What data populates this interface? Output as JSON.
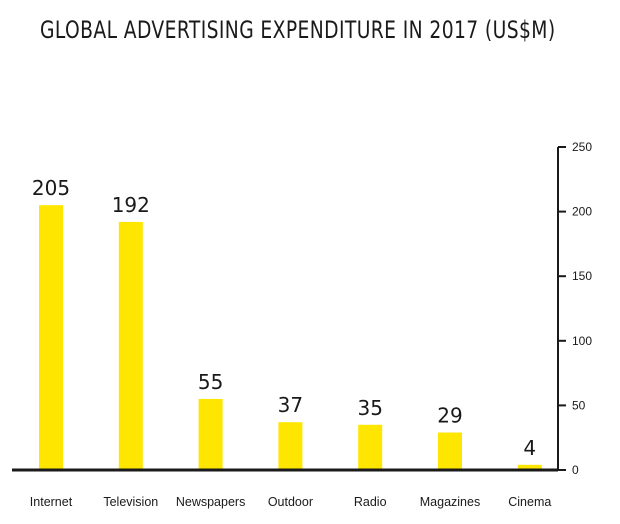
{
  "chart_data": {
    "type": "bar",
    "title": "GLOBAL ADVERTISING EXPENDITURE IN 2017 (US$M)",
    "categories": [
      "Internet",
      "Television",
      "Newspapers",
      "Outdoor",
      "Radio",
      "Magazines",
      "Cinema"
    ],
    "values": [
      205,
      192,
      55,
      37,
      35,
      29,
      4
    ],
    "data_labels": [
      "205",
      "192",
      "55",
      "37",
      "35",
      "29",
      "4"
    ],
    "ylim": [
      0,
      250
    ],
    "yticks": [
      0,
      50,
      100,
      150,
      200,
      250
    ],
    "ytick_labels": [
      "0",
      "50",
      "100",
      "150",
      "200",
      "250"
    ],
    "y_axis_position": "right",
    "grid": false,
    "legend": "none",
    "bar_color": "#FFE600",
    "axis_color": "#1a1a1a"
  }
}
